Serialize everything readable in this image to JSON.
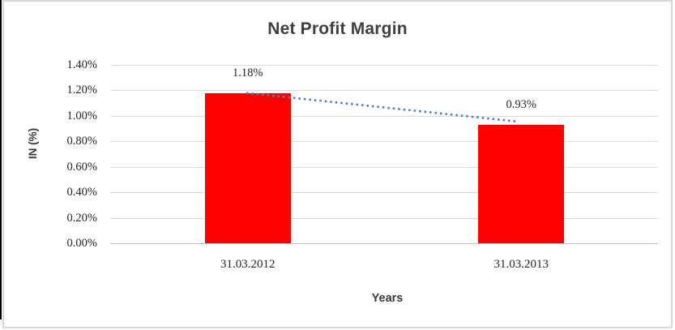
{
  "chart_data": {
    "type": "bar",
    "title": "Net Profit Margin",
    "xlabel": "Years",
    "ylabel": "IN (%)",
    "categories": [
      "31.03.2012",
      "31.03.2013"
    ],
    "series": [
      {
        "name": "Net Profit Margin",
        "values": [
          1.18,
          0.93
        ]
      }
    ],
    "data_labels": [
      "1.18%",
      "0.93%"
    ],
    "y_ticks": [
      {
        "label": "1.40%",
        "value": 1.4
      },
      {
        "label": "1.20%",
        "value": 1.2
      },
      {
        "label": "1.00%",
        "value": 1.0
      },
      {
        "label": "0.80%",
        "value": 0.8
      },
      {
        "label": "0.60%",
        "value": 0.6
      },
      {
        "label": "0.40%",
        "value": 0.4
      },
      {
        "label": "0.20%",
        "value": 0.2
      },
      {
        "label": "0.00%",
        "value": 0.0
      }
    ],
    "ylim": [
      0,
      1.4
    ],
    "grid": true,
    "legend_position": "none",
    "bar_color": "#FF0000",
    "trendline": {
      "style": "dotted",
      "color": "#4F81BD",
      "values": [
        1.18,
        0.93
      ]
    }
  },
  "frame": {
    "chart_border_color": "#D8D8D8",
    "left_edge_color": "#000000",
    "gridline_color": "#D9D9D9",
    "axis_line_color": "#BFBFBF",
    "background": "#FFFFFF"
  },
  "text_colors": {
    "title": "#3F3F3F",
    "axis_titles": "#3A3A3A",
    "tick_labels": "#262626"
  }
}
